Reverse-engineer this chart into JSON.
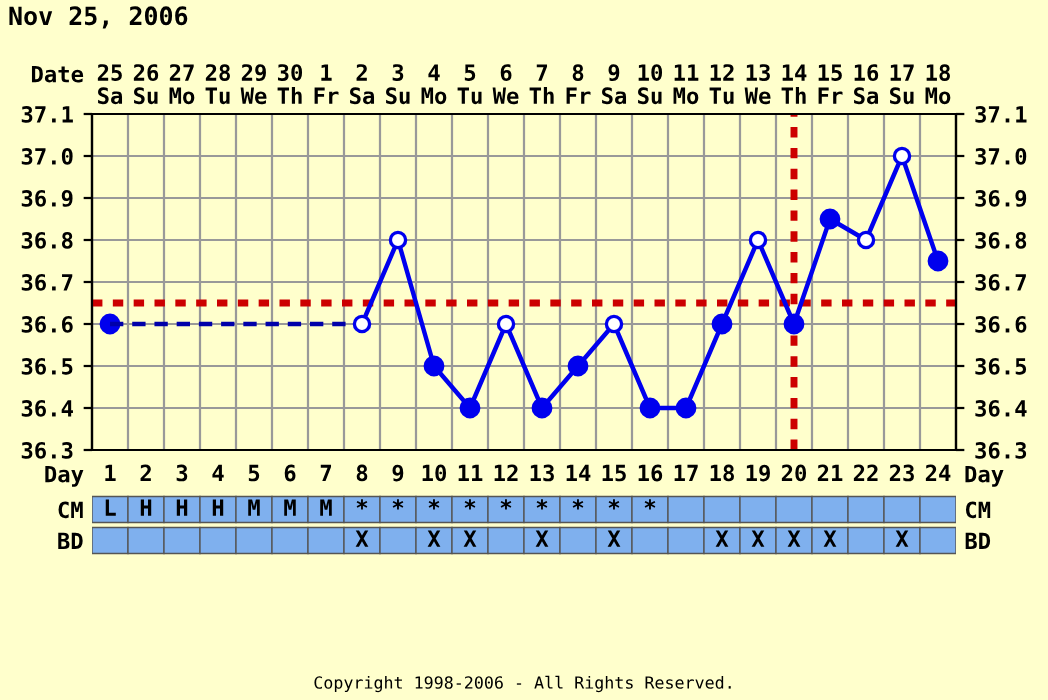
{
  "chart_data": [
    {
      "type": "line",
      "title": "Nov 25, 2006",
      "xlabel": "Date",
      "categories": [
        "25\nSa",
        "26\nSu",
        "27\nMo",
        "28\nTu",
        "29\nWe",
        "30\nTh",
        "1\nFr",
        "2\nSa",
        "3\nSu",
        "4\nMo",
        "5\nTu",
        "6\nWe",
        "7\nTh",
        "8\nFr",
        "9\nSa",
        "10\nSu",
        "11\nMo",
        "12\nTu",
        "13\nWe",
        "14\nTh",
        "15\nFr",
        "16\nSa",
        "17\nSu",
        "18\nMo"
      ],
      "ylim": [
        36.3,
        37.1
      ],
      "yticks": [
        36.3,
        36.4,
        36.5,
        36.6,
        36.7,
        36.8,
        36.9,
        {
          "value": 37,
          "label": "37.0"
        },
        37.1
      ],
      "y2lim": [
        36.3,
        37.1
      ],
      "y2ticks": [
        36.3,
        36.4,
        36.5,
        36.6,
        36.7,
        36.8,
        36.9,
        {
          "value": 37,
          "label": "37.0"
        },
        37.1
      ],
      "series": [
        {
          "color": "#0000ee",
          "marker": "circle",
          "line_style": "solid",
          "values": [
            36.6,
            null,
            null,
            null,
            null,
            null,
            null,
            36.6,
            36.8,
            36.5,
            36.4,
            36.6,
            36.4,
            36.5,
            36.6,
            36.4,
            36.4,
            36.6,
            36.8,
            36.6,
            36.85,
            36.8,
            37.0,
            36.75
          ]
        },
        {
          "color": "#0000aa",
          "marker": "none",
          "line_style": "dashed",
          "x": [
            "25\nSa",
            "2\nSa"
          ],
          "values": [
            36.6,
            36.6
          ]
        },
        {
          "type": "scatter",
          "color": "#0000ee",
          "marker": "circle",
          "x": [
            "2\nSa",
            "3\nSu",
            "6\nWe",
            "9\nSa",
            "13\nWe",
            "16\nSa",
            "17\nSu"
          ],
          "values": [
            36.6,
            36.8,
            36.6,
            36.6,
            36.8,
            36.8,
            37.0
          ]
        }
      ],
      "ref_lines": [
        {
          "axis": "y",
          "value": 36.65,
          "color": "#cc0000",
          "line_style": "dotted"
        },
        {
          "axis": "x",
          "value": "14\nTh",
          "color": "#cc0000",
          "line_style": "dotted"
        }
      ],
      "grid": true,
      "annotations": [
        "Copyright 1998-2006 - All Rights Reserved."
      ]
    },
    {
      "type": "heatmap",
      "xlabel": "Day",
      "categories": [
        "1",
        "2",
        "3",
        "4",
        "5",
        "6",
        "7",
        "8",
        "9",
        "10",
        "11",
        "12",
        "13",
        "14",
        "15",
        "16",
        "17",
        "18",
        "19",
        "20",
        "21",
        "22",
        "23",
        "24"
      ],
      "y_categories": [
        "CM",
        "BD"
      ],
      "y2_categories": [
        "CM",
        "BD"
      ],
      "cells": [
        [
          null,
          null,
          null,
          null,
          null,
          null,
          null,
          null,
          null,
          null,
          null,
          null,
          null,
          null,
          null,
          null,
          null,
          null,
          null,
          null,
          null,
          null,
          null,
          null
        ],
        [
          null,
          null,
          null,
          null,
          null,
          null,
          null,
          null,
          null,
          null,
          null,
          null,
          null,
          null,
          null,
          null,
          null,
          null,
          null,
          null,
          null,
          null,
          null,
          null
        ]
      ],
      "cell_labels": [
        [
          "L",
          "H",
          "H",
          "H",
          "M",
          "M",
          "M",
          "*",
          "*",
          "*",
          "*",
          "*",
          "*",
          "*",
          "*",
          "*",
          null,
          null,
          null,
          null,
          null,
          null,
          null,
          null
        ],
        [
          null,
          null,
          null,
          null,
          null,
          null,
          null,
          "X",
          null,
          "X",
          "X",
          null,
          "X",
          null,
          "X",
          null,
          null,
          "X",
          "X",
          "X",
          "X",
          null,
          "X",
          null
        ]
      ]
    }
  ]
}
